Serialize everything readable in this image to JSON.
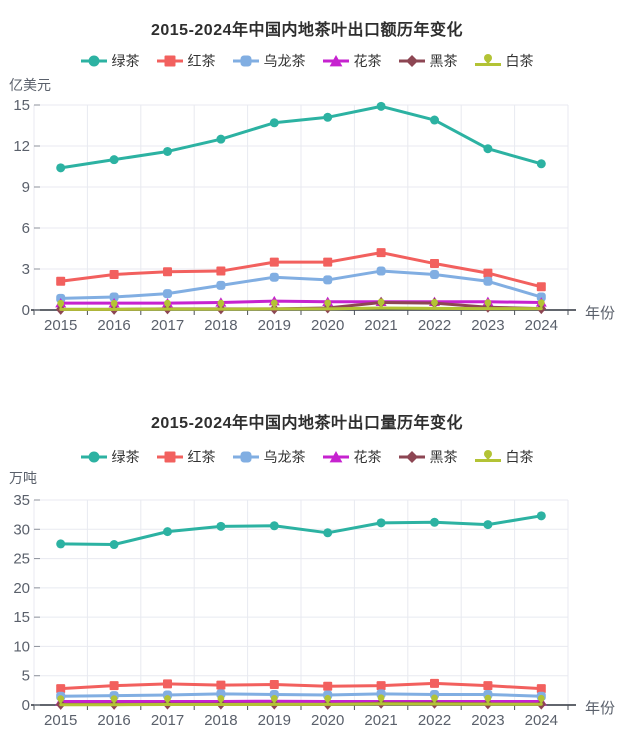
{
  "page": {
    "background": "#ffffff"
  },
  "chart_data": [
    {
      "type": "line",
      "title": "2015-2024年中国内地茶叶出口额历年变化",
      "ylabel": "亿美元",
      "xlabel": "年份",
      "categories": [
        "2015",
        "2016",
        "2017",
        "2018",
        "2019",
        "2020",
        "2021",
        "2022",
        "2023",
        "2024"
      ],
      "ylim": [
        0,
        15
      ],
      "ytick_step": 3,
      "grid": true,
      "legend_position": "top",
      "series": [
        {
          "name": "绿茶",
          "color": "#2cb2a2",
          "symbol": "circle",
          "values": [
            10.4,
            11.0,
            11.6,
            12.5,
            13.7,
            14.1,
            14.9,
            13.9,
            11.8,
            10.7
          ]
        },
        {
          "name": "红茶",
          "color": "#f2605e",
          "symbol": "rect",
          "values": [
            2.1,
            2.6,
            2.8,
            2.85,
            3.5,
            3.5,
            4.2,
            3.4,
            2.7,
            1.7
          ]
        },
        {
          "name": "乌龙茶",
          "color": "#81aee2",
          "symbol": "roundRect",
          "values": [
            0.85,
            0.95,
            1.2,
            1.8,
            2.4,
            2.2,
            2.85,
            2.6,
            2.1,
            0.95
          ]
        },
        {
          "name": "花茶",
          "color": "#c622cf",
          "symbol": "triangle",
          "values": [
            0.5,
            0.5,
            0.5,
            0.55,
            0.65,
            0.6,
            0.6,
            0.6,
            0.6,
            0.55
          ]
        },
        {
          "name": "黑茶",
          "color": "#8d4653",
          "symbol": "diamond",
          "values": [
            0.05,
            0.05,
            0.08,
            0.08,
            0.08,
            0.15,
            0.55,
            0.5,
            0.2,
            0.1
          ]
        },
        {
          "name": "白茶",
          "color": "#b3c335",
          "symbol": "pin",
          "values": [
            0.05,
            0.05,
            0.06,
            0.06,
            0.08,
            0.08,
            0.15,
            0.12,
            0.1,
            0.1
          ]
        }
      ]
    },
    {
      "type": "line",
      "title": "2015-2024年中国内地茶叶出口量历年变化",
      "ylabel": "万吨",
      "xlabel": "年份",
      "categories": [
        "2015",
        "2016",
        "2017",
        "2018",
        "2019",
        "2020",
        "2021",
        "2022",
        "2023",
        "2024"
      ],
      "ylim": [
        0,
        35
      ],
      "ytick_step": 5,
      "grid": true,
      "legend_position": "top",
      "series": [
        {
          "name": "绿茶",
          "color": "#2cb2a2",
          "symbol": "circle",
          "values": [
            27.5,
            27.4,
            29.6,
            30.5,
            30.6,
            29.4,
            31.1,
            31.2,
            30.8,
            32.3
          ]
        },
        {
          "name": "红茶",
          "color": "#f2605e",
          "symbol": "rect",
          "values": [
            2.8,
            3.3,
            3.6,
            3.4,
            3.5,
            3.2,
            3.3,
            3.7,
            3.3,
            2.8
          ]
        },
        {
          "name": "乌龙茶",
          "color": "#81aee2",
          "symbol": "roundRect",
          "values": [
            1.5,
            1.6,
            1.7,
            1.9,
            1.8,
            1.7,
            1.9,
            1.8,
            1.8,
            1.5
          ]
        },
        {
          "name": "花茶",
          "color": "#c622cf",
          "symbol": "triangle",
          "values": [
            0.6,
            0.6,
            0.6,
            0.6,
            0.65,
            0.6,
            0.6,
            0.6,
            0.6,
            0.6
          ]
        },
        {
          "name": "黑茶",
          "color": "#8d4653",
          "symbol": "diamond",
          "values": [
            0.1,
            0.1,
            0.15,
            0.15,
            0.15,
            0.1,
            0.3,
            0.3,
            0.2,
            0.15
          ]
        },
        {
          "name": "白茶",
          "color": "#b3c335",
          "symbol": "pin",
          "values": [
            0.05,
            0.05,
            0.08,
            0.08,
            0.1,
            0.1,
            0.2,
            0.18,
            0.15,
            0.12
          ]
        }
      ]
    }
  ]
}
